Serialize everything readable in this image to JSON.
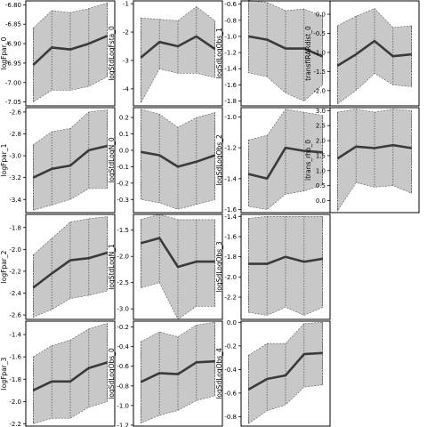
{
  "chart_data": [
    {
      "type": "area",
      "ylabel": "logFpar_0",
      "ylim": [
        -7.06,
        -6.79
      ],
      "yticks": [
        -6.8,
        -6.85,
        -6.9,
        -6.95,
        -7.0,
        -7.05
      ],
      "ytick_labels": [
        "-6.80",
        "-6.85",
        "-6.90",
        "-6.95",
        "-7.00",
        "-7.05"
      ],
      "x": [
        1,
        2,
        3,
        4,
        5
      ],
      "mean": [
        -6.955,
        -6.91,
        -6.915,
        -6.9,
        -6.88
      ],
      "lower": [
        -7.05,
        -7.02,
        -7.02,
        -7.01,
        -6.985
      ],
      "upper": [
        -6.86,
        -6.815,
        -6.82,
        -6.81,
        -6.795
      ]
    },
    {
      "type": "area",
      "ylabel": "logStdLogFsta_0",
      "ylim": [
        -4.6,
        -0.9
      ],
      "yticks": [
        -1,
        -2,
        -3,
        -4
      ],
      "ytick_labels": [
        "-1",
        "-2",
        "-3",
        "-4"
      ],
      "x": [
        1,
        2,
        3,
        4,
        5
      ],
      "mean": [
        -2.9,
        -2.35,
        -2.5,
        -2.15,
        -2.6
      ],
      "lower": [
        -4.5,
        -3.3,
        -3.45,
        -3.45,
        -3.6
      ],
      "upper": [
        -1.5,
        -1.55,
        -1.6,
        -1.1,
        -1.6
      ]
    },
    {
      "type": "area",
      "ylabel": "logSdLogObs_1",
      "ylim": [
        -1.86,
        -0.56
      ],
      "yticks": [
        -0.6,
        -0.8,
        -1.0,
        -1.2,
        -1.4,
        -1.6,
        -1.8
      ],
      "ytick_labels": [
        "-0.6",
        "-0.8",
        "-1.0",
        "-1.2",
        "-1.4",
        "-1.6",
        "-1.8"
      ],
      "x": [
        1,
        2,
        3,
        4,
        5
      ],
      "mean": [
        -1.0,
        -1.04,
        -1.15,
        -1.15,
        -1.25
      ],
      "lower": [
        -1.45,
        -1.5,
        -1.7,
        -1.8,
        -1.6
      ],
      "upper": [
        -0.55,
        -0.58,
        -0.68,
        -0.66,
        -0.75
      ]
    },
    {
      "type": "area",
      "ylabel": "transfIRARdist_0",
      "ylim": [
        -2.4,
        0.35
      ],
      "yticks": [
        0,
        -0.5,
        -1,
        -1.5,
        -2
      ],
      "ytick_labels": [
        "0.0",
        "-0.5",
        "-1.0",
        "-1.5",
        "-2.0"
      ],
      "x": [
        1,
        2,
        3,
        4,
        5
      ],
      "mean": [
        -1.35,
        -1.05,
        -0.7,
        -1.1,
        -1.05
      ],
      "lower": [
        -2.35,
        -2.0,
        -1.55,
        -1.85,
        -1.9
      ],
      "upper": [
        -0.3,
        -0.05,
        0.15,
        -0.35,
        -0.3
      ]
    },
    {
      "type": "area",
      "ylabel": "logFpar_1",
      "ylim": [
        -3.52,
        -2.56
      ],
      "yticks": [
        -2.6,
        -2.8,
        -3.0,
        -3.2,
        -3.4
      ],
      "ytick_labels": [
        "-2.6",
        "-2.8",
        "-3.0",
        "-3.2",
        "-3.4"
      ],
      "x": [
        1,
        2,
        3,
        4,
        5
      ],
      "mean": [
        -3.2,
        -3.12,
        -3.09,
        -2.95,
        -2.91
      ],
      "lower": [
        -3.5,
        -3.45,
        -3.4,
        -3.3,
        -3.3
      ],
      "upper": [
        -2.9,
        -2.78,
        -2.75,
        -2.6,
        -2.58
      ]
    },
    {
      "type": "area",
      "ylabel": "logStdLogN_0",
      "ylim": [
        -0.38,
        0.26
      ],
      "yticks": [
        0.2,
        0.1,
        0,
        -0.1,
        -0.2,
        -0.3
      ],
      "ytick_labels": [
        "0.2",
        "0.1",
        "0.0",
        "-0.1",
        "-0.2",
        "-0.3"
      ],
      "x": [
        1,
        2,
        3,
        4,
        5
      ],
      "mean": [
        -0.01,
        -0.03,
        -0.1,
        -0.07,
        -0.03
      ],
      "lower": [
        -0.3,
        -0.32,
        -0.36,
        -0.33,
        -0.3
      ],
      "upper": [
        0.25,
        0.22,
        0.14,
        0.2,
        0.23
      ]
    },
    {
      "type": "area",
      "ylabel": "logSdLogObs_2",
      "ylim": [
        -1.62,
        -0.94
      ],
      "yticks": [
        -1.0,
        -1.2,
        -1.4,
        -1.6
      ],
      "ytick_labels": [
        "-1.0",
        "-1.2",
        "-1.4",
        "-1.6"
      ],
      "x": [
        1,
        2,
        3,
        4,
        5
      ],
      "mean": [
        -1.37,
        -1.4,
        -1.2,
        -1.22,
        -1.23
      ],
      "lower": [
        -1.58,
        -1.6,
        -1.5,
        -1.48,
        -1.44
      ],
      "upper": [
        -1.15,
        -1.12,
        -0.95,
        -0.97,
        -0.99
      ]
    },
    {
      "type": "area",
      "ylabel": "itrans_rho_0",
      "ylim": [
        -0.4,
        3.1
      ],
      "yticks": [
        3.0,
        2.5,
        2.0,
        1.5,
        1.0,
        0.5,
        0.0
      ],
      "ytick_labels": [
        "3.0",
        "2.5",
        "2.0",
        "1.5",
        "1.0",
        "0.5",
        "0.0"
      ],
      "x": [
        1,
        2,
        3,
        4,
        5
      ],
      "mean": [
        1.4,
        1.8,
        1.75,
        1.85,
        1.75
      ],
      "lower": [
        -0.35,
        0.6,
        0.45,
        0.5,
        0.25
      ],
      "upper": [
        2.95,
        3.05,
        2.95,
        3.05,
        3.0
      ]
    },
    {
      "type": "area",
      "ylabel": "logFpar_2",
      "ylim": [
        -2.64,
        -1.68
      ],
      "yticks": [
        -1.8,
        -2.0,
        -2.2,
        -2.4,
        -2.6
      ],
      "ytick_labels": [
        "-1.8",
        "-2.0",
        "-2.2",
        "-2.4",
        "-2.6"
      ],
      "x": [
        1,
        2,
        3,
        4,
        5
      ],
      "mean": [
        -2.35,
        -2.22,
        -2.1,
        -2.08,
        -2.03
      ],
      "lower": [
        -2.62,
        -2.55,
        -2.45,
        -2.42,
        -2.38
      ],
      "upper": [
        -2.05,
        -1.9,
        -1.75,
        -1.72,
        -1.7
      ]
    },
    {
      "type": "area",
      "ylabel": "logStdLogN_1",
      "ylim": [
        -3.2,
        -1.2
      ],
      "yticks": [
        -1.5,
        -2.0,
        -2.5,
        -3.0
      ],
      "ytick_labels": [
        "-1.5",
        "-2.0",
        "-2.5",
        "-3.0"
      ],
      "x": [
        1,
        2,
        3,
        4,
        5
      ],
      "mean": [
        -1.75,
        -1.65,
        -2.2,
        -2.1,
        -2.1
      ],
      "lower": [
        -2.6,
        -2.5,
        -3.2,
        -2.95,
        -2.95
      ],
      "upper": [
        -1.3,
        -1.2,
        -1.3,
        -1.3,
        -1.3
      ]
    },
    {
      "type": "area",
      "ylabel": "logSdLogObs_3",
      "ylim": [
        -2.42,
        -1.38
      ],
      "yticks": [
        -1.4,
        -1.6,
        -1.8,
        -2.0,
        -2.2
      ],
      "ytick_labels": [
        "-1.4",
        "-1.6",
        "-1.8",
        "-2.0",
        "-2.2"
      ],
      "x": [
        1,
        2,
        3,
        4,
        5
      ],
      "mean": [
        -1.87,
        -1.87,
        -1.8,
        -1.85,
        -1.82
      ],
      "lower": [
        -2.35,
        -2.38,
        -2.3,
        -2.38,
        -2.3
      ],
      "upper": [
        -1.42,
        -1.4,
        -1.4,
        -1.4,
        -1.4
      ]
    },
    {
      "type": "area",
      "ylabel": "logFpar_3",
      "ylim": [
        -2.22,
        -1.28
      ],
      "yticks": [
        -1.4,
        -1.6,
        -1.8,
        -2.0,
        -2.2
      ],
      "ytick_labels": [
        "-1.4",
        "-1.6",
        "-1.8",
        "-2.0",
        "-2.2"
      ],
      "x": [
        1,
        2,
        3,
        4,
        5
      ],
      "mean": [
        -1.9,
        -1.82,
        -1.82,
        -1.7,
        -1.65
      ],
      "lower": [
        -2.2,
        -2.15,
        -2.15,
        -2.05,
        -2.0
      ],
      "upper": [
        -1.6,
        -1.5,
        -1.45,
        -1.35,
        -1.3
      ]
    },
    {
      "type": "area",
      "ylabel": "logSdLogObs_0",
      "ylim": [
        -1.21,
        -0.14
      ],
      "yticks": [
        -0.2,
        -0.4,
        -0.6,
        -0.8,
        -1.0,
        -1.2
      ],
      "ytick_labels": [
        "-0.2",
        "-0.4",
        "-0.6",
        "-0.8",
        "-1.0",
        "-1.2"
      ],
      "x": [
        1,
        2,
        3,
        4,
        5
      ],
      "mean": [
        -0.76,
        -0.67,
        -0.68,
        -0.56,
        -0.55
      ],
      "lower": [
        -1.18,
        -1.1,
        -1.05,
        -0.95,
        -0.9
      ],
      "upper": [
        -0.35,
        -0.25,
        -0.3,
        -0.18,
        -0.15
      ]
    },
    {
      "type": "area",
      "ylabel": "logSdLogObs_4",
      "ylim": [
        -0.88,
        0.01
      ],
      "yticks": [
        0,
        -0.2,
        -0.4,
        -0.6,
        -0.8
      ],
      "ytick_labels": [
        "0.0",
        "-0.2",
        "-0.4",
        "-0.6",
        "-0.8"
      ],
      "x": [
        1,
        2,
        3,
        4,
        5
      ],
      "mean": [
        -0.57,
        -0.48,
        -0.45,
        -0.27,
        -0.26
      ],
      "lower": [
        -0.86,
        -0.75,
        -0.7,
        -0.55,
        -0.53
      ],
      "upper": [
        -0.28,
        -0.18,
        -0.18,
        -0.01,
        0.0
      ]
    }
  ]
}
